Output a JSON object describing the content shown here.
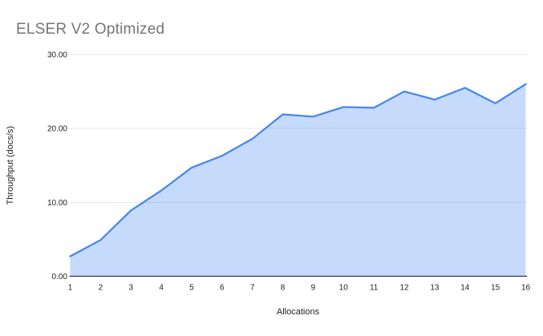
{
  "title": "ELSER V2 Optimized",
  "chart_data": {
    "type": "area",
    "title": "ELSER V2 Optimized",
    "xlabel": "Allocations",
    "ylabel": "Throughput (docs/s)",
    "categories": [
      "1",
      "2",
      "3",
      "4",
      "5",
      "6",
      "7",
      "8",
      "9",
      "10",
      "11",
      "12",
      "13",
      "14",
      "15",
      "16"
    ],
    "values": [
      2.7,
      4.9,
      8.9,
      11.6,
      14.7,
      16.3,
      18.6,
      21.9,
      21.6,
      22.9,
      22.8,
      25.0,
      23.9,
      25.5,
      23.4,
      26.0
    ],
    "series_name": "Throughput",
    "ylim": [
      0,
      30
    ],
    "yticks": [
      0,
      10,
      20,
      30
    ],
    "ytick_labels": [
      "0.00",
      "10.00",
      "20.00",
      "30.00"
    ],
    "grid": true,
    "legend": "none",
    "colors": {
      "line": "#4285f4",
      "area_fill": "rgba(66,133,244,0.3)",
      "gridline": "#e6e6e6",
      "baseline": "#333333",
      "tick_text": "#222222",
      "axis_title_text": "#222222",
      "chart_title_text": "#757575",
      "background": "#ffffff"
    }
  }
}
